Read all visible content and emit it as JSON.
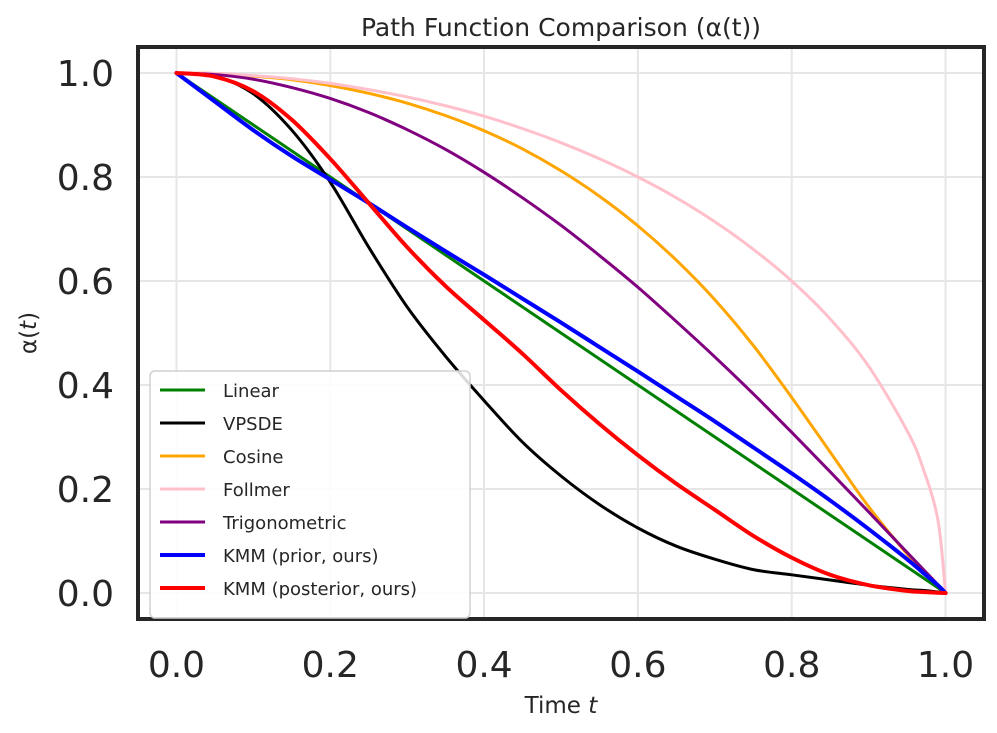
{
  "chart_data": {
    "type": "line",
    "title": "Path Function Comparison (α(t))",
    "xlabel": "Time t",
    "ylabel": "α(t)",
    "xlim": [
      -0.05,
      1.05
    ],
    "ylim": [
      -0.05,
      1.05
    ],
    "xticks": [
      "0.0",
      "0.2",
      "0.4",
      "0.6",
      "0.8",
      "1.0"
    ],
    "yticks": [
      "0.0",
      "0.2",
      "0.4",
      "0.6",
      "0.8",
      "1.0"
    ],
    "grid": true,
    "legend_position": "lower-left",
    "x": [
      0.0,
      0.05,
      0.1,
      0.15,
      0.2,
      0.25,
      0.3,
      0.35,
      0.4,
      0.45,
      0.5,
      0.55,
      0.6,
      0.65,
      0.7,
      0.75,
      0.8,
      0.85,
      0.9,
      0.95,
      0.97,
      0.99,
      1.0
    ],
    "series": [
      {
        "name": "Linear",
        "color": "#008000",
        "width": 3,
        "values": [
          1.0,
          0.95,
          0.9,
          0.85,
          0.8,
          0.75,
          0.7,
          0.65,
          0.6,
          0.55,
          0.5,
          0.45,
          0.4,
          0.35,
          0.3,
          0.25,
          0.2,
          0.15,
          0.1,
          0.05,
          0.03,
          0.01,
          0.0
        ]
      },
      {
        "name": "VPSDE",
        "color": "#000000",
        "width": 3,
        "values": [
          1.0,
          0.994,
          0.96,
          0.89,
          0.79,
          0.665,
          0.55,
          0.455,
          0.37,
          0.29,
          0.225,
          0.17,
          0.125,
          0.09,
          0.065,
          0.045,
          0.035,
          0.025,
          0.015,
          0.007,
          0.005,
          0.002,
          0.0
        ]
      },
      {
        "name": "Cosine",
        "color": "#FFA500",
        "width": 3,
        "values": [
          1.0,
          0.999,
          0.994,
          0.987,
          0.976,
          0.961,
          0.942,
          0.918,
          0.889,
          0.854,
          0.812,
          0.763,
          0.706,
          0.64,
          0.564,
          0.476,
          0.376,
          0.271,
          0.166,
          0.075,
          0.044,
          0.014,
          0.0
        ]
      },
      {
        "name": "Follmer",
        "color": "#FFC0CB",
        "width": 3,
        "values": [
          1.0,
          0.999,
          0.995,
          0.989,
          0.98,
          0.968,
          0.954,
          0.937,
          0.917,
          0.893,
          0.866,
          0.835,
          0.8,
          0.76,
          0.714,
          0.661,
          0.6,
          0.527,
          0.436,
          0.312,
          0.243,
          0.141,
          0.0
        ]
      },
      {
        "name": "Trigonometric",
        "color": "#800080",
        "width": 3,
        "values": [
          1.0,
          0.997,
          0.988,
          0.972,
          0.951,
          0.924,
          0.891,
          0.853,
          0.809,
          0.76,
          0.707,
          0.649,
          0.588,
          0.522,
          0.454,
          0.383,
          0.309,
          0.233,
          0.156,
          0.078,
          0.047,
          0.016,
          0.0
        ]
      },
      {
        "name": "KMM (prior, ours)",
        "color": "#0000FF",
        "width": 4,
        "values": [
          1.0,
          0.945,
          0.89,
          0.84,
          0.795,
          0.75,
          0.703,
          0.657,
          0.612,
          0.566,
          0.52,
          0.473,
          0.426,
          0.378,
          0.33,
          0.28,
          0.23,
          0.178,
          0.123,
          0.065,
          0.04,
          0.015,
          0.0
        ]
      },
      {
        "name": "KMM (posterior, ours)",
        "color": "#FF0000",
        "width": 4,
        "values": [
          1.0,
          0.993,
          0.965,
          0.91,
          0.835,
          0.75,
          0.665,
          0.59,
          0.525,
          0.46,
          0.39,
          0.325,
          0.265,
          0.21,
          0.16,
          0.11,
          0.068,
          0.035,
          0.015,
          0.004,
          0.002,
          0.0005,
          0.0
        ]
      }
    ]
  }
}
